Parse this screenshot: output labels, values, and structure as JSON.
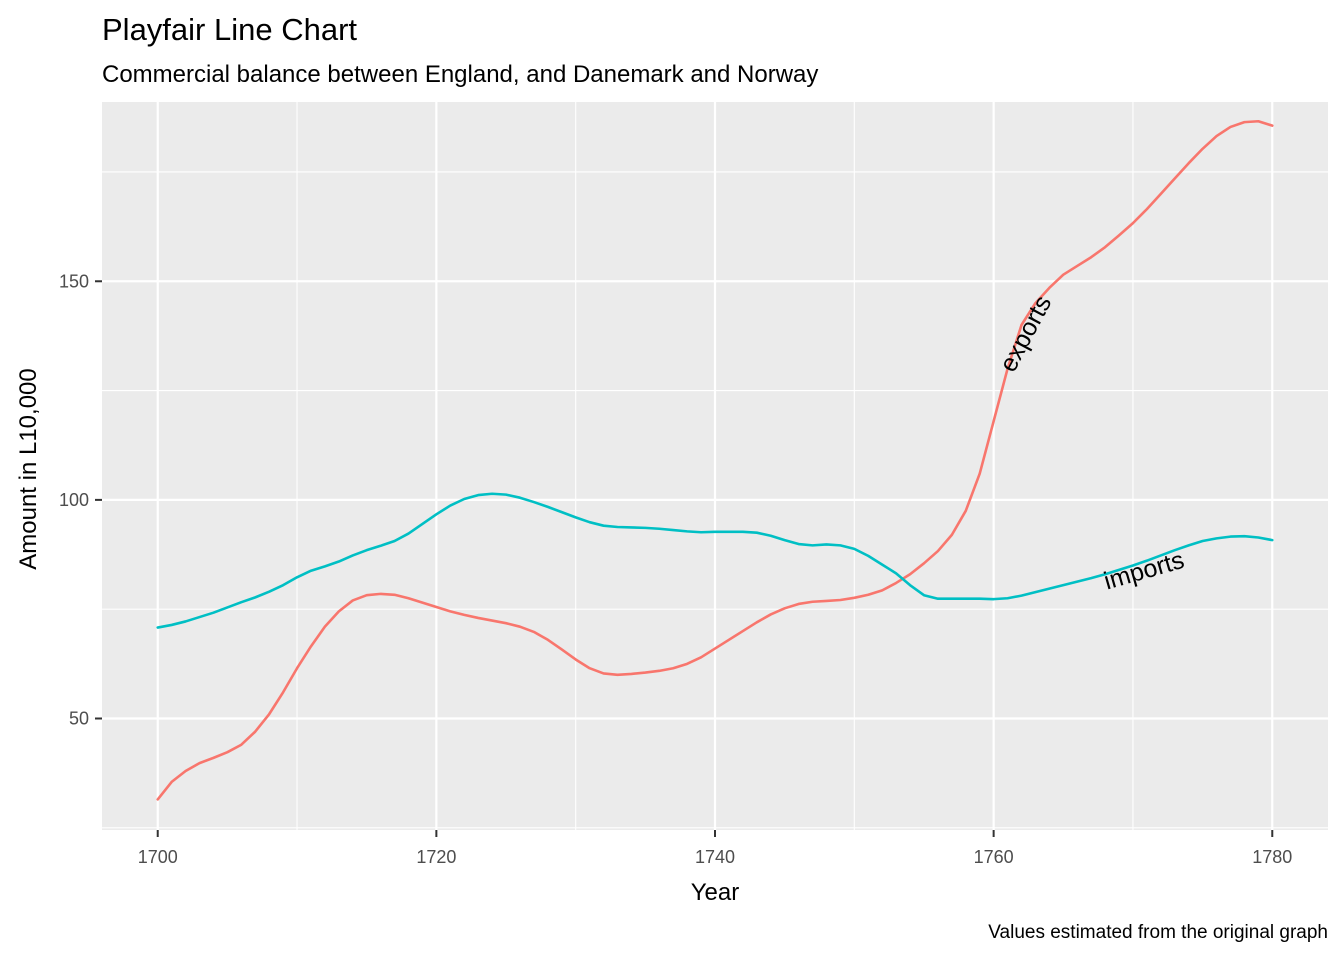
{
  "chart_data": {
    "type": "line",
    "title": "Playfair Line Chart",
    "subtitle": "Commercial balance between England, and Danemark and Norway",
    "caption": "Values estimated from the original graph",
    "xlabel": "Year",
    "ylabel": "Amount in L10,000",
    "xlim": [
      1696,
      1784
    ],
    "ylim": [
      24.5,
      191
    ],
    "x_ticks": [
      1700,
      1720,
      1740,
      1760,
      1780
    ],
    "y_ticks": [
      50,
      100,
      150
    ],
    "grid": true,
    "legend": "none",
    "x": [
      1700,
      1701,
      1702,
      1703,
      1704,
      1705,
      1706,
      1707,
      1708,
      1709,
      1710,
      1711,
      1712,
      1713,
      1714,
      1715,
      1716,
      1717,
      1718,
      1719,
      1720,
      1721,
      1722,
      1723,
      1724,
      1725,
      1726,
      1727,
      1728,
      1729,
      1730,
      1731,
      1732,
      1733,
      1734,
      1735,
      1736,
      1737,
      1738,
      1739,
      1740,
      1741,
      1742,
      1743,
      1744,
      1745,
      1746,
      1747,
      1748,
      1749,
      1750,
      1751,
      1752,
      1753,
      1754,
      1755,
      1756,
      1757,
      1758,
      1759,
      1760,
      1761,
      1762,
      1763,
      1764,
      1765,
      1766,
      1767,
      1768,
      1769,
      1770,
      1771,
      1772,
      1773,
      1774,
      1775,
      1776,
      1777,
      1778,
      1779,
      1780
    ],
    "series": [
      {
        "name": "exports",
        "color": "#F8766D",
        "values": [
          31.5,
          35.5,
          38.0,
          39.8,
          41.0,
          42.3,
          44.0,
          47.0,
          51.0,
          56.0,
          61.5,
          66.5,
          71.0,
          74.5,
          77.0,
          78.2,
          78.5,
          78.3,
          77.5,
          76.5,
          75.5,
          74.5,
          73.7,
          73.0,
          72.4,
          71.8,
          71.0,
          69.8,
          68.0,
          65.8,
          63.5,
          61.5,
          60.3,
          60.0,
          60.2,
          60.5,
          60.9,
          61.5,
          62.5,
          64.0,
          66.0,
          68.0,
          70.0,
          72.0,
          73.8,
          75.2,
          76.2,
          76.7,
          76.9,
          77.1,
          77.6,
          78.3,
          79.3,
          81.0,
          83.0,
          85.5,
          88.3,
          92.0,
          97.5,
          106.0,
          118.0,
          130.0,
          140.0,
          145.0,
          148.5,
          151.5,
          153.5,
          155.5,
          157.8,
          160.5,
          163.3,
          166.5,
          170.0,
          173.5,
          177.0,
          180.3,
          183.2,
          185.3,
          186.4,
          186.6,
          185.6
        ]
      },
      {
        "name": "imports",
        "color": "#00BFC4",
        "values": [
          70.8,
          71.4,
          72.2,
          73.2,
          74.2,
          75.4,
          76.6,
          77.7,
          79.0,
          80.5,
          82.3,
          83.8,
          84.8,
          85.9,
          87.3,
          88.5,
          89.5,
          90.6,
          92.3,
          94.5,
          96.7,
          98.7,
          100.2,
          101.1,
          101.4,
          101.2,
          100.5,
          99.5,
          98.4,
          97.2,
          96.0,
          94.9,
          94.1,
          93.8,
          93.7,
          93.6,
          93.4,
          93.1,
          92.8,
          92.6,
          92.7,
          92.7,
          92.7,
          92.5,
          91.8,
          90.8,
          89.9,
          89.6,
          89.8,
          89.6,
          88.8,
          87.2,
          85.2,
          83.2,
          80.5,
          78.2,
          77.4,
          77.4,
          77.4,
          77.4,
          77.3,
          77.5,
          78.1,
          78.9,
          79.7,
          80.5,
          81.3,
          82.1,
          83.0,
          84.0,
          85.0,
          86.1,
          87.3,
          88.5,
          89.6,
          90.6,
          91.2,
          91.6,
          91.7,
          91.4,
          90.8
        ]
      }
    ],
    "annotations": [
      {
        "text": "exports",
        "x": 1762.3,
        "y": 138,
        "angle": -62
      },
      {
        "text": "imports",
        "x": 1770.8,
        "y": 83.8,
        "angle": -16
      }
    ]
  }
}
